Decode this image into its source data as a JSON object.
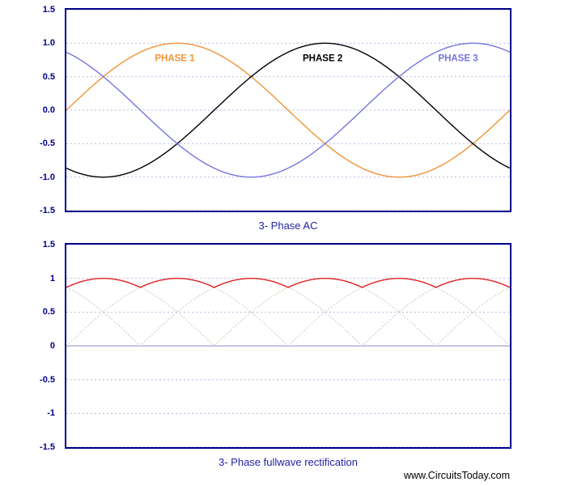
{
  "page": {
    "background": "#ffffff"
  },
  "colors": {
    "chart_border": "#00008b",
    "grid_line": "#b9b9e6",
    "tick_label": "#00008b",
    "title_text": "#2323a8",
    "zero_line": "#8888cc",
    "watermark_text": "#000000",
    "phase1": "#f09437",
    "phase2": "#000000",
    "phase3": "#7575dd",
    "rectified_output": "#dd2222"
  },
  "footer": {
    "watermark": "www.CircuitsToday.com"
  },
  "chart_data": [
    {
      "id": "three-phase-ac",
      "type": "line",
      "title": "3- Phase AC",
      "xlabel": "",
      "ylabel": "",
      "x_range_deg": [
        0,
        360
      ],
      "ylim": [
        -1.5,
        1.5
      ],
      "grid": true,
      "legend_position": "none",
      "y_ticks": [
        "1.5",
        "1.0",
        "0.5",
        "0.0",
        "-0.5",
        "-1.0",
        "-1.5"
      ],
      "y_tick_values": [
        1.5,
        1.0,
        0.5,
        0.0,
        -0.5,
        -1.0,
        -1.5
      ],
      "series": [
        {
          "name": "Phase 1",
          "waveform": "sine",
          "amplitude": 1,
          "phase_deg": 0,
          "color": "#f09437",
          "style": "solid",
          "width": 1.4
        },
        {
          "name": "Phase 2",
          "waveform": "sine",
          "amplitude": 1,
          "phase_deg": -120,
          "color": "#000000",
          "style": "solid",
          "width": 1.4
        },
        {
          "name": "Phase 3",
          "waveform": "sine",
          "amplitude": 1,
          "phase_deg": 120,
          "color": "#7575dd",
          "style": "solid",
          "width": 1.4
        }
      ],
      "annotations": [
        {
          "text": "PHASE 1",
          "x_deg": 88,
          "y": 0.73,
          "color": "#f09437"
        },
        {
          "text": "PHASE 2",
          "x_deg": 208,
          "y": 0.73,
          "color": "#000000"
        },
        {
          "text": "PHASE 3",
          "x_deg": 318,
          "y": 0.73,
          "color": "#7575dd"
        }
      ]
    },
    {
      "id": "three-phase-fullwave-rectification",
      "type": "line",
      "title": "3- Phase fullwave rectification",
      "xlabel": "",
      "ylabel": "",
      "x_range_deg": [
        0,
        360
      ],
      "ylim": [
        -1.5,
        1.5
      ],
      "grid": true,
      "legend_position": "none",
      "zero_line": "solid",
      "y_ticks": [
        "1.5",
        "1",
        "0.5",
        "0",
        "-0.5",
        "-1",
        "-1.5"
      ],
      "y_tick_values": [
        1.5,
        1.0,
        0.5,
        0.0,
        -0.5,
        -1.0,
        -1.5
      ],
      "series": [
        {
          "name": "Rectified phase 1",
          "waveform": "abs_sine",
          "amplitude": 1,
          "phase_deg": 0,
          "color": "#cfcfcf",
          "style": "dotted",
          "width": 1.1
        },
        {
          "name": "Rectified phase 2",
          "waveform": "abs_sine",
          "amplitude": 1,
          "phase_deg": -120,
          "color": "#d9cdb4",
          "style": "dotted",
          "width": 1.1
        },
        {
          "name": "Rectified phase 3",
          "waveform": "abs_sine",
          "amplitude": 1,
          "phase_deg": 120,
          "color": "#c6c6df",
          "style": "dotted",
          "width": 1.1
        },
        {
          "name": "Rectified output (6-pulse envelope)",
          "waveform": "max_abs_sine_3phase",
          "amplitude": 1,
          "phases_deg": [
            0,
            -120,
            120
          ],
          "color": "#dd2222",
          "style": "solid",
          "width": 1.4
        }
      ],
      "annotations": []
    }
  ]
}
